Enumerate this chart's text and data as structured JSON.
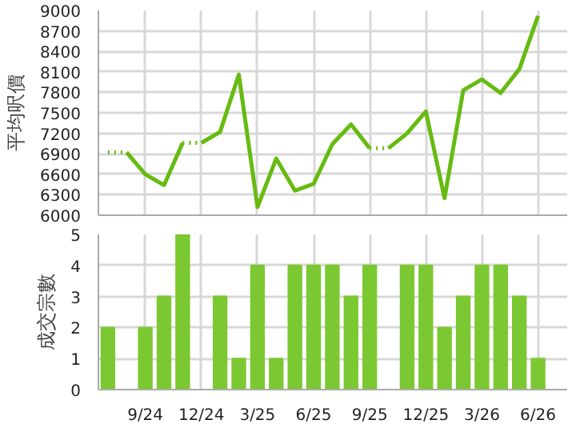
{
  "chart_data": [
    {
      "type": "line",
      "ylabel": "平均呎價",
      "xlim": [
        "2024-06-16",
        "2026-07-18"
      ],
      "ylim": [
        6000,
        9000
      ],
      "yticks": [
        6000,
        6300,
        6600,
        6900,
        7200,
        7500,
        7800,
        8100,
        8400,
        8700,
        9000
      ],
      "xticks": [
        {
          "value": "2024-09",
          "label": null
        },
        {
          "value": "2024-12",
          "label": null
        },
        {
          "value": "2025-03",
          "label": null
        },
        {
          "value": "2025-06",
          "label": null
        },
        {
          "value": "2025-09",
          "label": null
        },
        {
          "value": "2025-12",
          "label": null
        },
        {
          "value": "2026-03",
          "label": null
        },
        {
          "value": "2026-06",
          "label": null
        }
      ],
      "grid": true,
      "tick_labels": "y",
      "marker": "none",
      "series": [
        {
          "color": "#66bb11",
          "line_style": "solid",
          "x": [
            "2024-08",
            "2024-09",
            "2024-10",
            "2024-11"
          ],
          "values": [
            6920,
            6600,
            6440,
            7060
          ]
        },
        {
          "color": "#66bb11",
          "line_style": "solid",
          "x": [
            "2024-12",
            "2025-01",
            "2025-02",
            "2025-03",
            "2025-04",
            "2025-05",
            "2025-06",
            "2025-07",
            "2025-08",
            "2025-09"
          ],
          "values": [
            7060,
            7220,
            8060,
            6120,
            6830,
            6360,
            6460,
            7040,
            7330,
            6980
          ]
        },
        {
          "color": "#66bb11",
          "line_style": "solid",
          "x": [
            "2025-10",
            "2025-11",
            "2025-12",
            "2026-01",
            "2026-02",
            "2026-03",
            "2026-04",
            "2026-05",
            "2026-06"
          ],
          "values": [
            6980,
            7200,
            7520,
            6250,
            7830,
            7990,
            7790,
            8140,
            8920
          ]
        },
        {
          "color": "#66bb11",
          "line_style": "dotted",
          "x": [
            "2024-07",
            "2024-08"
          ],
          "values": [
            6920,
            6920
          ]
        },
        {
          "color": "#66bb11",
          "line_style": "dotted",
          "x": [
            "2024-11",
            "2024-12"
          ],
          "values": [
            7060,
            7060
          ]
        },
        {
          "color": "#66bb11",
          "line_style": "dotted",
          "x": [
            "2025-09",
            "2025-10"
          ],
          "values": [
            6980,
            6980
          ]
        }
      ]
    },
    {
      "type": "bar",
      "ylabel": "成交宗數",
      "xlim": [
        "2024-06-16",
        "2026-07-18"
      ],
      "ylim": [
        0,
        5
      ],
      "yticks": [
        0,
        1,
        2,
        3,
        4,
        5
      ],
      "xticks": [
        {
          "value": "2024-09",
          "label": "9/24"
        },
        {
          "value": "2024-12",
          "label": "12/24"
        },
        {
          "value": "2025-03",
          "label": "3/25"
        },
        {
          "value": "2025-06",
          "label": "6/25"
        },
        {
          "value": "2025-09",
          "label": "9/25"
        },
        {
          "value": "2025-12",
          "label": "12/25"
        },
        {
          "value": "2026-03",
          "label": "3/26"
        },
        {
          "value": "2026-06",
          "label": "6/26"
        }
      ],
      "grid": true,
      "x": [
        "2024-07",
        "2024-08",
        "2024-09",
        "2024-10",
        "2024-11",
        "2024-12",
        "2025-01",
        "2025-02",
        "2025-03",
        "2025-04",
        "2025-05",
        "2025-06",
        "2025-07",
        "2025-08",
        "2025-09",
        "2025-10",
        "2025-11",
        "2025-12",
        "2026-01",
        "2026-02",
        "2026-03",
        "2026-04",
        "2026-05",
        "2026-06"
      ],
      "series": [
        {
          "color": "#7cc832",
          "values": [
            2,
            0,
            2,
            3,
            5,
            0,
            3,
            1,
            4,
            1,
            4,
            4,
            4,
            3,
            4,
            0,
            4,
            4,
            2,
            3,
            4,
            4,
            3,
            1
          ]
        }
      ]
    }
  ]
}
